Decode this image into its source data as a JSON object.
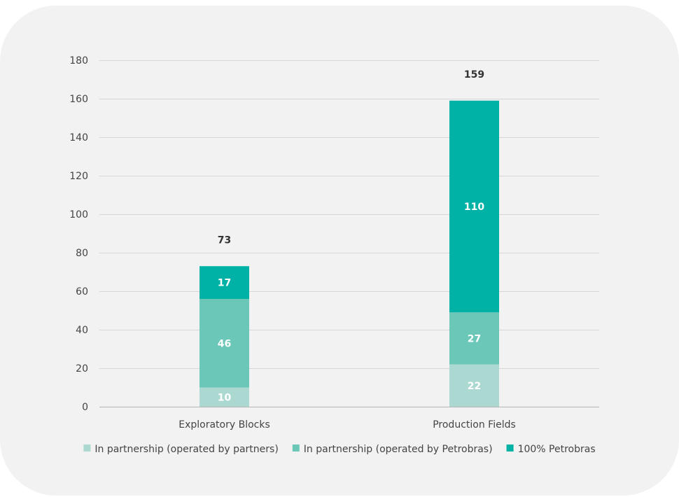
{
  "chart_data": {
    "type": "bar",
    "stacked": true,
    "categories": [
      "Exploratory Blocks",
      "Production Fields"
    ],
    "series": [
      {
        "name": "In partnership (operated by partners)",
        "values": [
          10,
          22
        ],
        "color": "#abd9d2"
      },
      {
        "name": "In partnership (operated by Petrobras)",
        "values": [
          46,
          27
        ],
        "color": "#6bc7b7"
      },
      {
        "name": "100% Petrobras",
        "values": [
          17,
          110
        ],
        "color": "#00b1a6"
      }
    ],
    "totals": [
      73,
      159
    ],
    "ylim": [
      0,
      180
    ],
    "yticks": [
      0,
      20,
      40,
      60,
      80,
      100,
      120,
      140,
      160,
      180
    ],
    "grid": true,
    "legend_position": "bottom",
    "title": "",
    "xlabel": "",
    "ylabel": ""
  }
}
